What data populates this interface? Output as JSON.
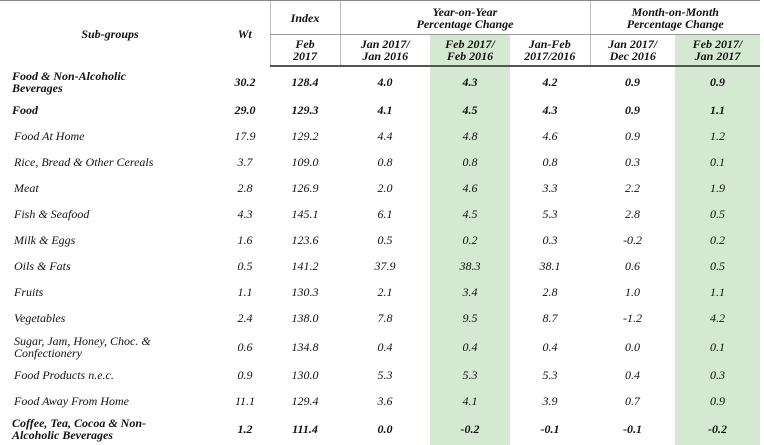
{
  "table": {
    "header": {
      "subgroups": "Sub-groups",
      "wt": "Wt",
      "index": "Index",
      "yoy": "Year-on-Year\nPercentage Change",
      "mom": "Month-on-Month\nPercentage Change",
      "sub": [
        "Feb\n2017",
        "Jan 2017/\nJan 2016",
        "Feb 2017/\nFeb 2016",
        "Jan-Feb\n2017/2016",
        "Jan 2017/\nDec 2016",
        "Feb 2017/\nJan 2017"
      ]
    },
    "rows": [
      {
        "label": "Food & Non-Alcoholic\nBeverages",
        "bold": true,
        "values": [
          "30.2",
          "128.4",
          "4.0",
          "4.3",
          "4.2",
          "0.9",
          "0.9"
        ]
      },
      {
        "label": "Food",
        "bold": true,
        "values": [
          "29.0",
          "129.3",
          "4.1",
          "4.5",
          "4.3",
          "0.9",
          "1.1"
        ]
      },
      {
        "label": "Food At Home",
        "values": [
          "17.9",
          "129.2",
          "4.4",
          "4.8",
          "4.6",
          "0.9",
          "1.2"
        ]
      },
      {
        "label": "Rice, Bread & Other Cereals",
        "values": [
          "3.7",
          "109.0",
          "0.8",
          "0.8",
          "0.8",
          "0.3",
          "0.1"
        ]
      },
      {
        "label": "Meat",
        "values": [
          "2.8",
          "126.9",
          "2.0",
          "4.6",
          "3.3",
          "2.2",
          "1.9"
        ]
      },
      {
        "label": "Fish & Seafood",
        "values": [
          "4.3",
          "145.1",
          "6.1",
          "4.5",
          "5.3",
          "2.8",
          "0.5"
        ]
      },
      {
        "label": "Milk & Eggs",
        "values": [
          "1.6",
          "123.6",
          "0.5",
          "0.2",
          "0.3",
          "-0.2",
          "0.2"
        ]
      },
      {
        "label": "Oils & Fats",
        "values": [
          "0.5",
          "141.2",
          "37.9",
          "38.3",
          "38.1",
          "0.6",
          "0.5"
        ]
      },
      {
        "label": "Fruits",
        "values": [
          "1.1",
          "130.3",
          "2.1",
          "3.4",
          "2.8",
          "1.0",
          "1.1"
        ]
      },
      {
        "label": "Vegetables",
        "values": [
          "2.4",
          "138.0",
          "7.8",
          "9.5",
          "8.7",
          "-1.2",
          "4.2"
        ]
      },
      {
        "label": "Sugar, Jam, Honey, Choc. &\nConfectionery",
        "values": [
          "0.6",
          "134.8",
          "0.4",
          "0.4",
          "0.4",
          "0.0",
          "0.1"
        ]
      },
      {
        "label": "Food Products n.e.c.",
        "values": [
          "0.9",
          "130.0",
          "5.3",
          "5.3",
          "5.3",
          "0.4",
          "0.3"
        ]
      },
      {
        "label": "Food Away From Home",
        "values": [
          "11.1",
          "129.4",
          "3.6",
          "4.1",
          "3.9",
          "0.7",
          "0.9"
        ]
      },
      {
        "label": "Coffee, Tea, Cocoa & Non-\nAlcoholic Beverages",
        "bold": true,
        "values": [
          "1.2",
          "111.4",
          "0.0",
          "-0.2",
          "-0.1",
          "-0.1",
          "-0.2"
        ]
      }
    ]
  }
}
